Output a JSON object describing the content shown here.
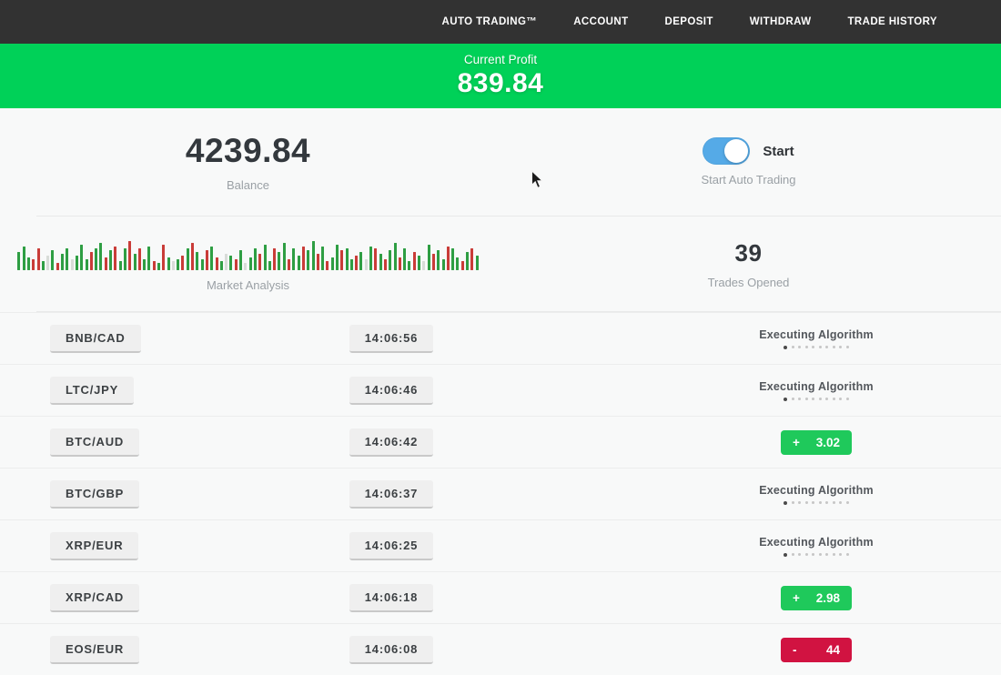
{
  "nav": {
    "items": [
      {
        "label": "AUTO TRADING™"
      },
      {
        "label": "ACCOUNT"
      },
      {
        "label": "DEPOSIT"
      },
      {
        "label": "WITHDRAW"
      },
      {
        "label": "TRADE HISTORY"
      }
    ]
  },
  "profit_banner": {
    "label": "Current Profit",
    "value": "839.84"
  },
  "stats": {
    "balance": {
      "value": "4239.84",
      "label": "Balance"
    },
    "auto_trading": {
      "toggle_label": "Start",
      "label": "Start Auto Trading",
      "toggle_on": true
    },
    "market_analysis": {
      "label": "Market Analysis",
      "bars": [
        "g20",
        "g26",
        "g14",
        "r12",
        "r24",
        "g10",
        "p16",
        "g22",
        "r8",
        "g18",
        "g24",
        "p12",
        "g16",
        "g28",
        "g12",
        "r20",
        "g24",
        "g30",
        "r14",
        "g22",
        "r26",
        "g10",
        "g24",
        "r32",
        "g18",
        "r24",
        "g12",
        "g26",
        "r10",
        "g8",
        "r28",
        "g14",
        "p10",
        "g12",
        "r16",
        "g24",
        "r30",
        "g20",
        "g12",
        "r22",
        "g26",
        "r14",
        "g10",
        "p18",
        "g16",
        "r12",
        "g22",
        "p8",
        "g14",
        "g24",
        "r18",
        "g28",
        "g10",
        "r24",
        "g20",
        "g30",
        "r12",
        "g24",
        "g16",
        "r26",
        "g22",
        "g32",
        "r18",
        "g26",
        "r10",
        "g14",
        "g28",
        "r22",
        "g24",
        "g12",
        "r16",
        "g20",
        "p12",
        "g26",
        "r24",
        "g18",
        "r12",
        "g22",
        "g30",
        "r14",
        "g24",
        "g10",
        "r20",
        "g16",
        "p10",
        "g28",
        "r18",
        "g22",
        "g12",
        "r26",
        "g24",
        "g14",
        "r10",
        "g20",
        "r24",
        "g16"
      ]
    },
    "trades_opened": {
      "value": "39",
      "label": "Trades Opened"
    }
  },
  "trades": {
    "executing_label": "Executing Algorithm",
    "rows": [
      {
        "pair": "BNB/CAD",
        "time": "14:06:56",
        "status": {
          "type": "executing"
        }
      },
      {
        "pair": "LTC/JPY",
        "time": "14:06:46",
        "status": {
          "type": "executing"
        }
      },
      {
        "pair": "BTC/AUD",
        "time": "14:06:42",
        "status": {
          "type": "profit",
          "sign": "+",
          "value": "3.02"
        }
      },
      {
        "pair": "BTC/GBP",
        "time": "14:06:37",
        "status": {
          "type": "executing"
        }
      },
      {
        "pair": "XRP/EUR",
        "time": "14:06:25",
        "status": {
          "type": "executing"
        }
      },
      {
        "pair": "XRP/CAD",
        "time": "14:06:18",
        "status": {
          "type": "profit",
          "sign": "+",
          "value": "2.98"
        }
      },
      {
        "pair": "EOS/EUR",
        "time": "14:06:08",
        "status": {
          "type": "loss",
          "sign": "-",
          "value": "44"
        }
      }
    ]
  },
  "colors": {
    "nav_bg": "#323232",
    "banner_green": "#00d158",
    "profit_green": "#1fc95b",
    "loss_red": "#d11341",
    "toggle_blue": "#55aae7",
    "bar_green": "#2e9e43",
    "bar_red": "#c93c38",
    "bar_pale": "#d8dcd8"
  }
}
